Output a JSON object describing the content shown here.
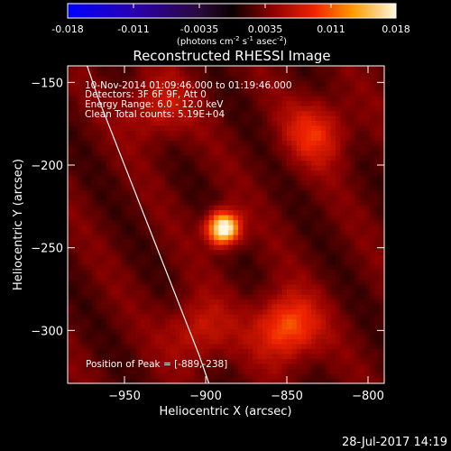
{
  "colorbar": {
    "ticks": [
      "-0.018",
      "-0.011",
      "-0.0035",
      "0.0035",
      "0.011",
      "0.018"
    ],
    "unit_prefix": "(photons cm",
    "unit_exp1": "-2",
    "unit_mid": " s",
    "unit_exp2": "-1",
    "unit_mid2": " asec",
    "unit_exp3": "-2",
    "unit_suffix": ")"
  },
  "chart_data": {
    "type": "heatmap",
    "title": "Reconstructed RHESSI Image",
    "xlabel": "Heliocentric X (arcsec)",
    "ylabel": "Heliocentric Y (arcsec)",
    "xlim": [
      -985,
      -790
    ],
    "ylim": [
      -332,
      -140
    ],
    "x_ticks": [
      -950,
      -900,
      -850,
      -800
    ],
    "y_ticks": [
      -150,
      -200,
      -250,
      -300
    ],
    "x_tick_labels": [
      "−950",
      "−900",
      "−850",
      "−800"
    ],
    "y_tick_labels": [
      "−150",
      "−200",
      "−250",
      "−300"
    ],
    "colorbar_range": [
      -0.018,
      0.018
    ],
    "peak": {
      "x": -889,
      "y": -238,
      "value": 0.018
    },
    "sources": [
      {
        "x": -889,
        "y": -238,
        "value": 0.018
      },
      {
        "x": -850,
        "y": -298,
        "value": 0.011
      },
      {
        "x": -832,
        "y": -180,
        "value": 0.0075
      },
      {
        "x": -930,
        "y": -165,
        "value": 0.006
      },
      {
        "x": -905,
        "y": -300,
        "value": 0.006
      }
    ],
    "limb_x": [
      -973,
      -966,
      -958,
      -948,
      -936,
      -924,
      -912,
      -904,
      -898
    ],
    "limb_y": [
      -140,
      -160,
      -180,
      -205,
      -235,
      -265,
      -295,
      -315,
      -332
    ],
    "annotations": {
      "time_range": "10-Nov-2014 01:09:46.000 to 01:19:46.000",
      "detectors": "Detectors: 3F 6F 9F, Att 0",
      "energy": "Energy Range: 6.0 - 12.0 keV",
      "clean": "Clean    Total counts: 5.19E+04",
      "peak_label": "Position of Peak = [-889,-238]"
    }
  },
  "footer": {
    "date": "28-Jul-2017 14:19"
  }
}
